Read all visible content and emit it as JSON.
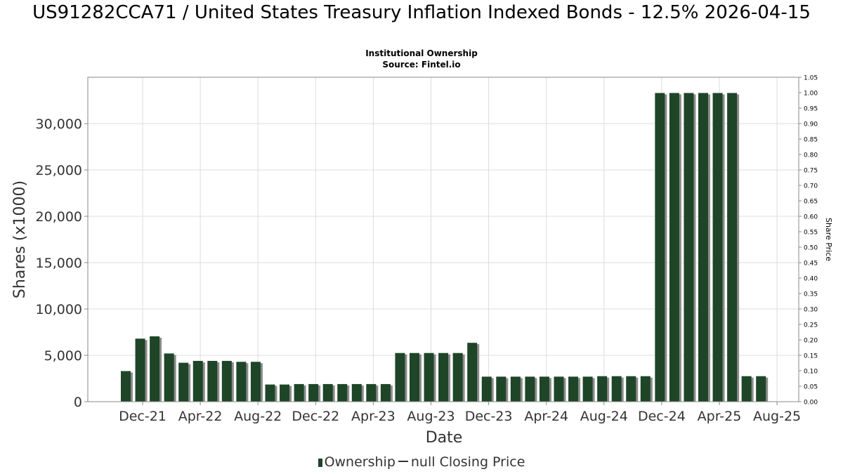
{
  "chart_data": {
    "type": "bar",
    "title": "US91282CCA71 / United States Treasury Inflation Indexed Bonds - 12.5% 2026-04-15",
    "subtitle_lines": [
      "Institutional Ownership",
      "Source: Fintel.io"
    ],
    "xlabel": "Date",
    "ylabel": "Shares (x1000)",
    "y2label": "Share Price",
    "ylim": [
      0,
      35000
    ],
    "y2lim": [
      0,
      1.05
    ],
    "yticks": [
      "0",
      "5,000",
      "10,000",
      "15,000",
      "20,000",
      "25,000",
      "30,000"
    ],
    "y2ticks": [
      "0.00",
      "0.05",
      "0.10",
      "0.15",
      "0.20",
      "0.25",
      "0.30",
      "0.35",
      "0.40",
      "0.45",
      "0.50",
      "0.55",
      "0.60",
      "0.65",
      "0.70",
      "0.75",
      "0.80",
      "0.85",
      "0.90",
      "0.95",
      "1.00",
      "1.05"
    ],
    "xticks": [
      "Dec-21",
      "Apr-22",
      "Aug-22",
      "Dec-22",
      "Apr-23",
      "Aug-23",
      "Dec-23",
      "Apr-24",
      "Aug-24",
      "Dec-24",
      "Apr-25",
      "Aug-25"
    ],
    "grid": true,
    "legend_position": "bottom",
    "colors": {
      "bar": "#1e4527",
      "bar_shadow": "#8c8c8c",
      "grid": "#dddddd",
      "axis": "#888888"
    },
    "series": [
      {
        "name": "Ownership",
        "values": [
          3300,
          6800,
          7050,
          5200,
          4200,
          4400,
          4400,
          4400,
          4300,
          4300,
          1850,
          1850,
          1900,
          1900,
          1900,
          1900,
          1900,
          1900,
          1900,
          5250,
          5250,
          5250,
          5250,
          5250,
          6350,
          2700,
          2700,
          2700,
          2700,
          2700,
          2700,
          2700,
          2700,
          2750,
          2750,
          2750,
          2750,
          33300,
          33300,
          33300,
          33300,
          33300,
          33300,
          2750,
          2750
        ]
      }
    ]
  },
  "legend": {
    "ownership_label": "Ownership",
    "price_label": "null Closing Price"
  }
}
